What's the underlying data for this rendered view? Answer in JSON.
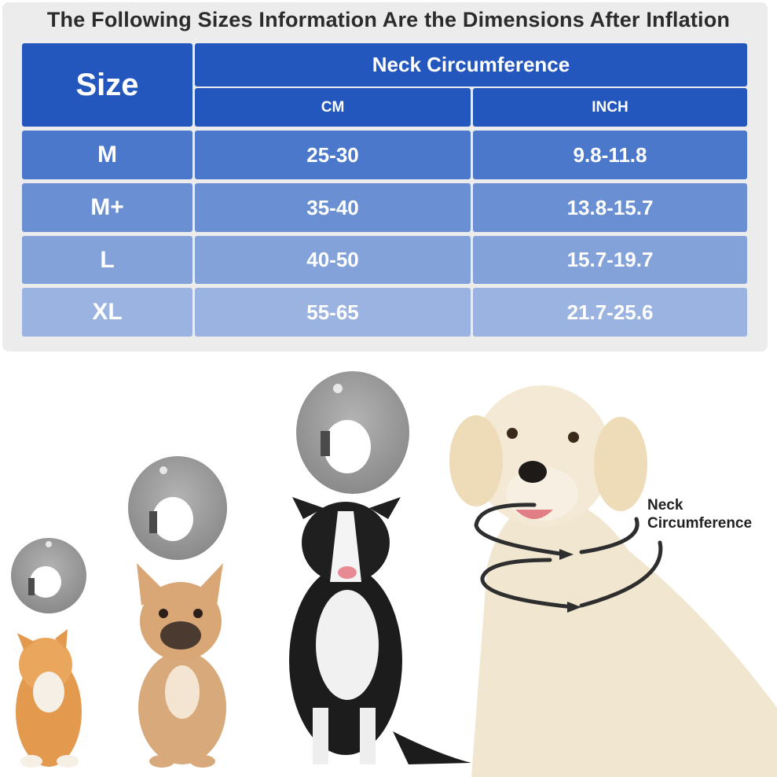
{
  "heading": "The Following Sizes Information Are the Dimensions After Inflation",
  "table": {
    "size_header": "Size",
    "neck_header": "Neck Circumference",
    "cm_header": "CM",
    "inch_header": "INCH",
    "rows": [
      {
        "size": "M",
        "cm": "25-30",
        "inch": "9.8-11.8"
      },
      {
        "size": "M+",
        "cm": "35-40",
        "inch": "13.8-15.7"
      },
      {
        "size": "L",
        "cm": "40-50",
        "inch": "15.7-19.7"
      },
      {
        "size": "XL",
        "cm": "55-65",
        "inch": "21.7-25.6"
      }
    ]
  },
  "illustration": {
    "neck_label_line1": "Neck",
    "neck_label_line2": "Circumference"
  },
  "colors": {
    "header_blue": "#2457be",
    "row_m": "#4b78cb",
    "row_m_plus": "#6a8fd3",
    "row_l": "#84a2da",
    "row_xl": "#9bb3e1",
    "panel_bg": "#ececec"
  }
}
